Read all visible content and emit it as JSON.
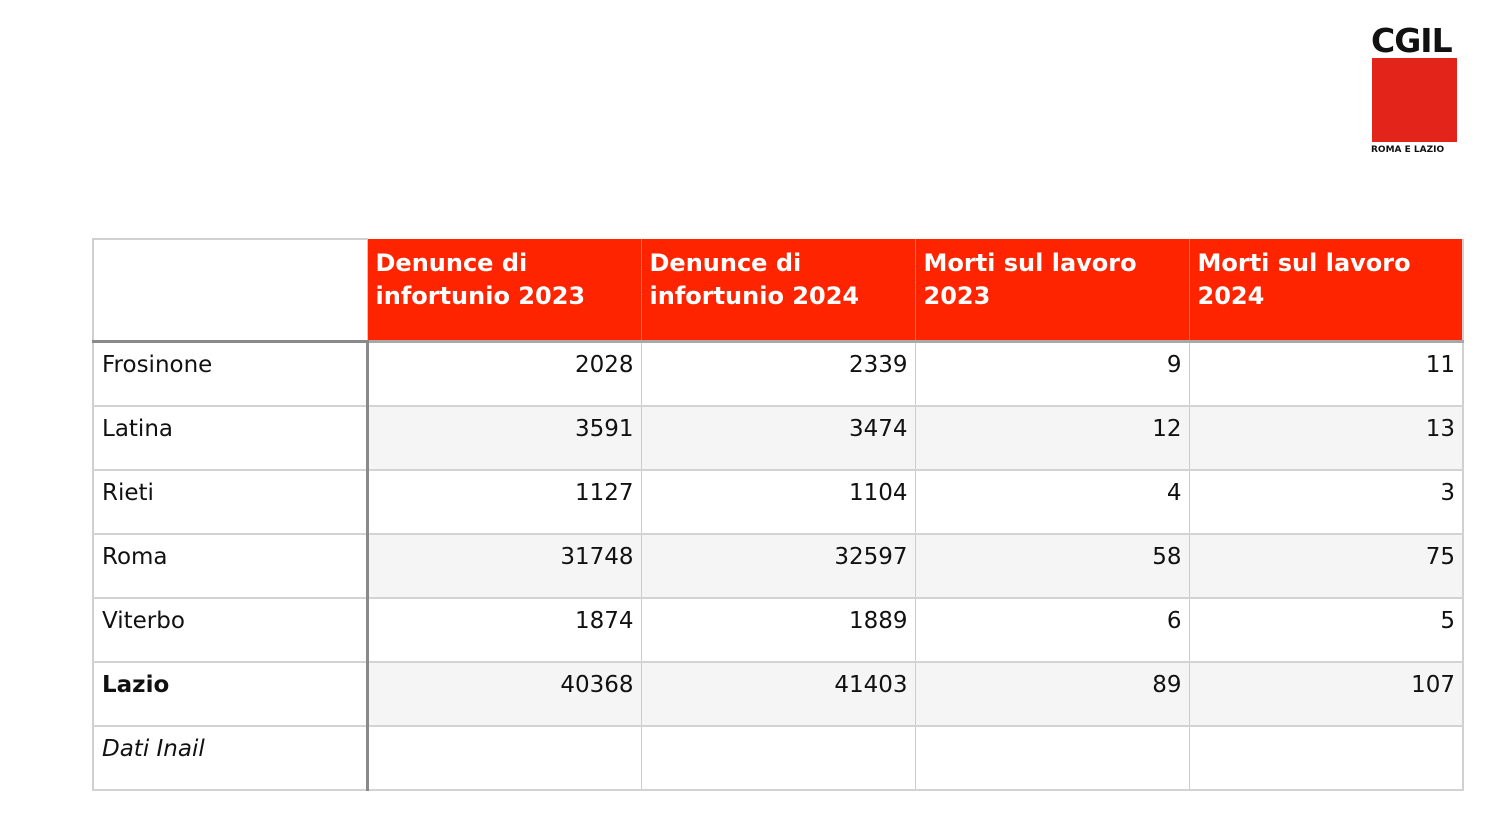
{
  "logo": {
    "wordmark": "CGIL",
    "subtitle": "ROMA E LAZIO",
    "brand_color": "#e3241b"
  },
  "table": {
    "header_color": "#ff2400",
    "headers": [
      "Denunce di infortunio 2023",
      "Denunce di infortunio 2024",
      "Morti sul lavoro 2023",
      "Morti sul lavoro 2024"
    ],
    "rows": [
      {
        "label": "Frosinone",
        "values": [
          "2028",
          "2339",
          "9",
          "11"
        ]
      },
      {
        "label": "Latina",
        "values": [
          "3591",
          "3474",
          "12",
          "13"
        ]
      },
      {
        "label": "Rieti",
        "values": [
          "1127",
          "1104",
          "4",
          "3"
        ]
      },
      {
        "label": "Roma",
        "values": [
          "31748",
          "32597",
          "58",
          "75"
        ]
      },
      {
        "label": "Viterbo",
        "values": [
          "1874",
          "1889",
          "6",
          "5"
        ]
      },
      {
        "label": "Lazio",
        "values": [
          "40368",
          "41403",
          "89",
          "107"
        ]
      }
    ],
    "source_note": "Dati Inail"
  }
}
